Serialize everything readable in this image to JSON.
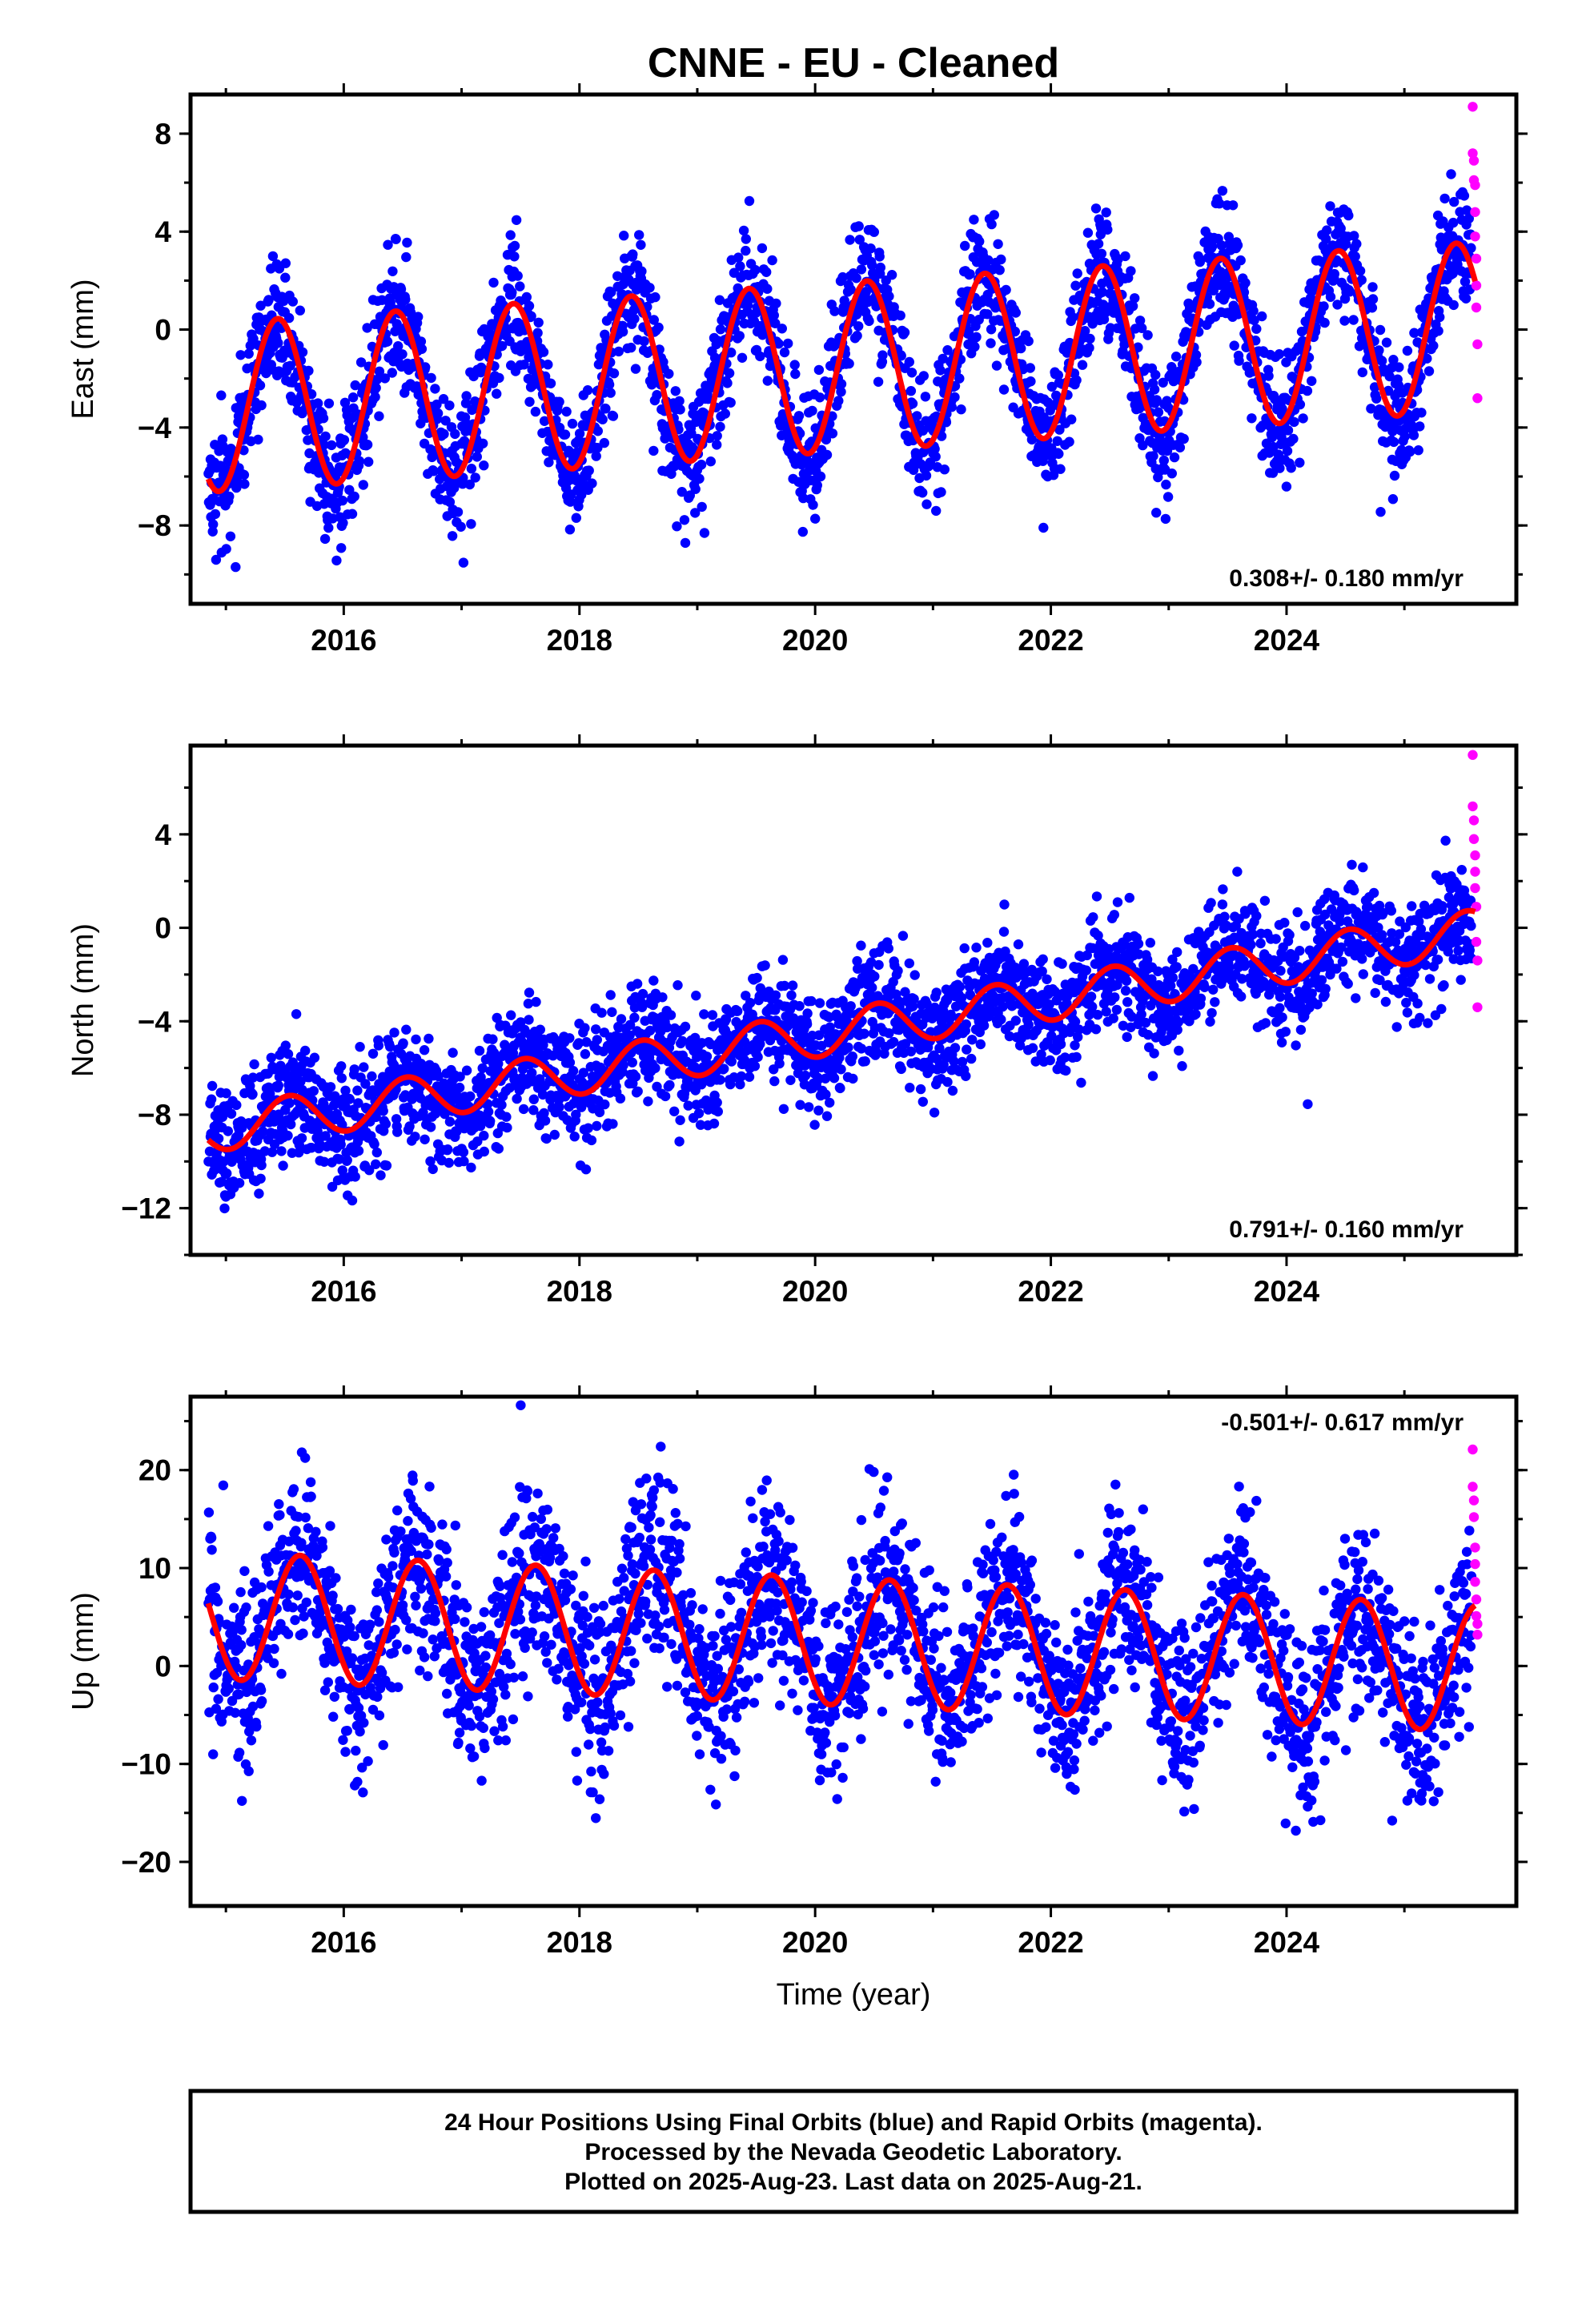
{
  "title": "CNNE  - EU - Cleaned",
  "colors": {
    "final": "#0000ff",
    "rapid": "#ff00ff",
    "model": "#ff0000",
    "frame": "#000000"
  },
  "chart_data": [
    {
      "type": "scatter",
      "ylabel": "East (mm)",
      "xlabel": "",
      "xlim": [
        2014.7,
        2025.95
      ],
      "ylim": [
        -11.2,
        9.6
      ],
      "xticks": [
        "2016",
        "2018",
        "2020",
        "2022",
        "2024"
      ],
      "yticks": [
        "8",
        "4",
        "0",
        "−4",
        "−8"
      ],
      "rate_text": "0.308+/- 0.180 mm/yr",
      "rate_pos": "bottom-right",
      "model": {
        "start": 2014.85,
        "end": 2025.6,
        "offset": -1.6,
        "trend": 0.308,
        "amp": 3.45,
        "phase": 0.19
      },
      "scatter_sd": 1.3,
      "series": [
        {
          "color": "#0000ff"
        },
        {
          "color": "#ff00ff",
          "x": [
            2025.58,
            2025.58,
            2025.59,
            2025.59,
            2025.6,
            2025.6,
            2025.6,
            2025.61,
            2025.61,
            2025.61,
            2025.62,
            2025.62
          ],
          "y": [
            9.1,
            7.2,
            6.9,
            6.1,
            5.9,
            4.8,
            3.8,
            2.9,
            1.8,
            0.9,
            -0.6,
            -2.8
          ]
        }
      ]
    },
    {
      "type": "scatter",
      "ylabel": "North (mm)",
      "xlabel": "",
      "xlim": [
        2014.7,
        2025.95
      ],
      "ylim": [
        -14.0,
        7.8
      ],
      "xticks": [
        "2016",
        "2018",
        "2020",
        "2022",
        "2024"
      ],
      "yticks": [
        "4",
        "0",
        "−4",
        "−8",
        "−12"
      ],
      "rate_text": "0.791+/- 0.160 mm/yr",
      "rate_pos": "bottom-right",
      "model": {
        "start": 2014.85,
        "end": 2025.6,
        "offset": -4.6,
        "trend": 0.791,
        "amp": 0.95,
        "phase": 0.28
      },
      "scatter_sd": 1.2,
      "series": [
        {
          "color": "#0000ff"
        },
        {
          "color": "#ff00ff",
          "x": [
            2025.58,
            2025.58,
            2025.59,
            2025.59,
            2025.6,
            2025.6,
            2025.6,
            2025.61,
            2025.61,
            2025.62,
            2025.62
          ],
          "y": [
            7.4,
            5.2,
            4.6,
            3.8,
            3.1,
            2.4,
            1.7,
            0.9,
            -0.6,
            -1.4,
            -3.4
          ]
        }
      ]
    },
    {
      "type": "scatter",
      "ylabel": "Up (mm)",
      "xlabel": "Time (year)",
      "xlim": [
        2014.7,
        2025.95
      ],
      "ylim": [
        -24.5,
        27.5
      ],
      "xticks": [
        "2016",
        "2018",
        "2020",
        "2022",
        "2024"
      ],
      "yticks": [
        "20",
        "10",
        "0",
        "−10",
        "−20"
      ],
      "rate_text": "-0.501+/- 0.617 mm/yr",
      "rate_pos": "top-right",
      "model": {
        "start": 2014.85,
        "end": 2025.6,
        "offset": 2.6,
        "trend": -0.501,
        "amp": 6.5,
        "phase": 0.38
      },
      "scatter_sd": 4.6,
      "series": [
        {
          "color": "#0000ff"
        },
        {
          "color": "#ff00ff",
          "x": [
            2025.58,
            2025.58,
            2025.59,
            2025.59,
            2025.6,
            2025.6,
            2025.6,
            2025.61,
            2025.61,
            2025.62,
            2025.62
          ],
          "y": [
            22.1,
            18.3,
            16.9,
            15.2,
            12.1,
            10.4,
            8.6,
            6.8,
            5.1,
            4.3,
            3.2
          ]
        }
      ]
    }
  ],
  "footer": {
    "line1": "24 Hour Positions Using Final Orbits (blue) and Rapid Orbits (magenta).",
    "line2": "Processed by the Nevada Geodetic Laboratory.",
    "line3": "Plotted on 2025-Aug-23. Last data on 2025-Aug-21."
  }
}
